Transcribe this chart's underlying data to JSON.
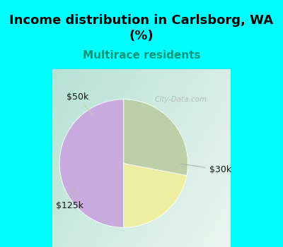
{
  "title": "Income distribution in Carlsborg, WA\n(%)",
  "subtitle": "Multirace residents",
  "slices": [
    {
      "label": "$30k",
      "value": 50,
      "color": "#C9AADF"
    },
    {
      "label": "$50k",
      "value": 22,
      "color": "#EEEEA0"
    },
    {
      "label": "$125k",
      "value": 28,
      "color": "#BCCFA8"
    }
  ],
  "startangle": 90,
  "bg_color_top": "#00FFFF",
  "bg_color_chart_tl": "#A8DECE",
  "bg_color_chart_br": "#E8F5F0",
  "title_fontsize": 13,
  "subtitle_fontsize": 11,
  "subtitle_color": "#00967A",
  "label_color": "#111111",
  "watermark": "City-Data.com"
}
